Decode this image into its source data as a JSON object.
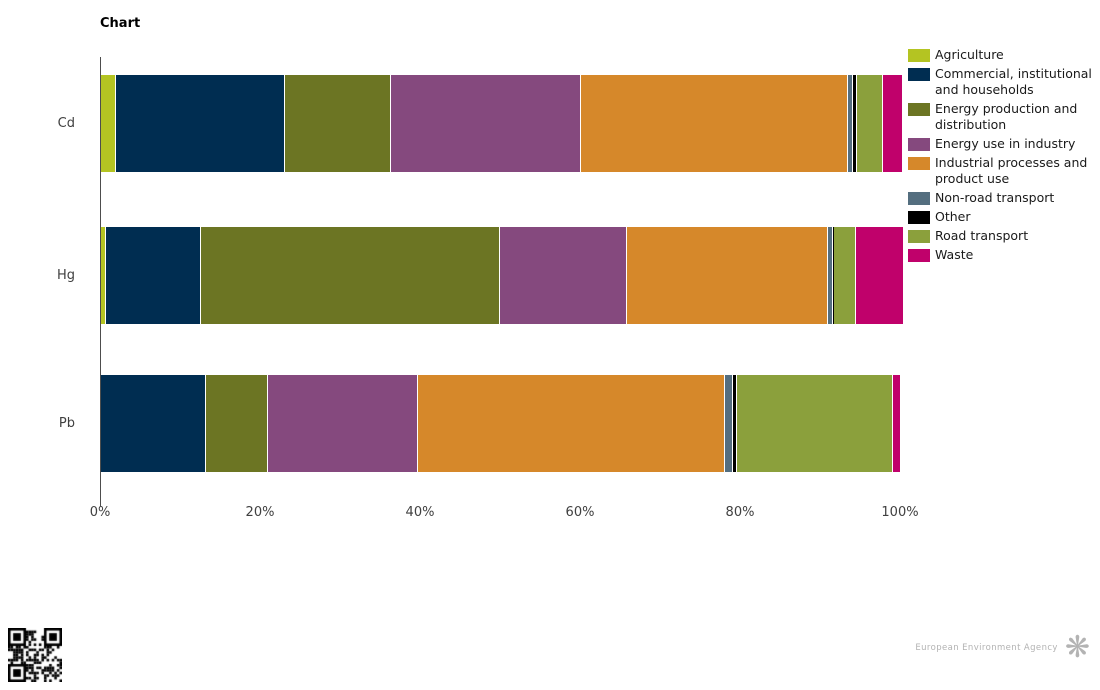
{
  "title": "Chart",
  "chart_data": {
    "type": "bar",
    "orientation": "horizontal",
    "stacked": true,
    "unit": "percent",
    "categories": [
      "Cd",
      "Hg",
      "Pb"
    ],
    "series": [
      {
        "name": "Agriculture",
        "color": "#b4c422",
        "values": [
          1.8,
          0.5,
          0
        ]
      },
      {
        "name": "Commercial, institutional and households",
        "color": "#002d51",
        "values": [
          21.0,
          11.7,
          13.0
        ]
      },
      {
        "name": "Energy production and distribution",
        "color": "#6c7523",
        "values": [
          13.1,
          37.3,
          7.6
        ]
      },
      {
        "name": "Energy use in industry",
        "color": "#85497e",
        "values": [
          23.6,
          15.8,
          18.6
        ]
      },
      {
        "name": "Industrial processes and product use",
        "color": "#d6882a",
        "values": [
          33.3,
          24.9,
          38.3
        ]
      },
      {
        "name": "Non-road transport",
        "color": "#546e7f",
        "values": [
          0.4,
          0.5,
          0.9
        ]
      },
      {
        "name": "Other",
        "color": "#000000",
        "values": [
          0.4,
          0.1,
          0.4
        ]
      },
      {
        "name": "Road transport",
        "color": "#8ba03c",
        "values": [
          3.1,
          2.6,
          19.3
        ]
      },
      {
        "name": "Waste",
        "color": "#c0016b",
        "values": [
          2.4,
          5.9,
          0.9
        ]
      }
    ],
    "x_ticks": [
      "0%",
      "20%",
      "40%",
      "60%",
      "80%",
      "100%"
    ],
    "xlim": [
      0,
      100
    ],
    "grid": false,
    "legend_position": "right"
  },
  "footer": {
    "brand": "European Environment Agency"
  }
}
